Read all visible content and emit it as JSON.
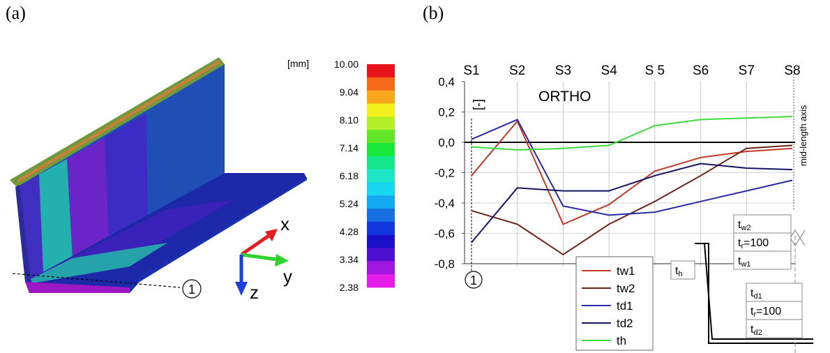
{
  "panel_a": {
    "label": "(a)",
    "unit": "[mm]",
    "legend_values": [
      "10.00",
      "9.04",
      "8.10",
      "7.14",
      "6.18",
      "5.24",
      "4.28",
      "3.34",
      "2.38"
    ],
    "legend_colors": [
      "#e8141c",
      "#f46a18",
      "#f8a81a",
      "#f4f01e",
      "#b4ee28",
      "#64e628",
      "#1ce83a",
      "#14e88a",
      "#20e6c8",
      "#16d6f0",
      "#14a8f0",
      "#1870e0",
      "#1438e0",
      "#1a10c8",
      "#5010d0",
      "#a018e0",
      "#e41ee6"
    ],
    "axes": {
      "x": "x",
      "y": "y",
      "z": "z"
    },
    "section_marker": "1"
  },
  "panel_b": {
    "label": "(b)",
    "y_unit": "[-]",
    "chart_label": "ORTHO",
    "mid_axis_label": "mid-length axis",
    "section_marker": "1",
    "box_top": {
      "rows": [
        "w2",
        "100",
        "w1"
      ]
    },
    "box_bottom": {
      "rows": [
        "d1",
        "100",
        "d2"
      ]
    },
    "th_label": "h"
  },
  "chart_data": {
    "type": "line",
    "categories": [
      "S1",
      "S2",
      "S3",
      "S4",
      "S 5",
      "S6",
      "S7",
      "S8"
    ],
    "ylim": [
      -0.8,
      0.4
    ],
    "yticks": [
      "0,4",
      "0,2",
      "0,0",
      "-0,2",
      "-0,4",
      "-0,6",
      "-0,8"
    ],
    "legend_placement": "bottom-center",
    "series": [
      {
        "name": "tw1",
        "color": "#c0392b",
        "values": [
          -0.22,
          0.14,
          -0.54,
          -0.41,
          -0.19,
          -0.1,
          -0.06,
          -0.04
        ]
      },
      {
        "name": "tw2",
        "color": "#6b2418",
        "values": [
          -0.45,
          -0.54,
          -0.74,
          -0.54,
          -0.39,
          -0.22,
          -0.04,
          -0.02
        ]
      },
      {
        "name": "td1",
        "color": "#2a2aa8",
        "values": [
          0.02,
          0.15,
          -0.42,
          -0.48,
          -0.46,
          -0.39,
          -0.32,
          -0.25
        ]
      },
      {
        "name": "td2",
        "color": "#141460",
        "values": [
          -0.66,
          -0.3,
          -0.32,
          -0.32,
          -0.22,
          -0.14,
          -0.17,
          -0.18
        ]
      },
      {
        "name": "th",
        "color": "#3ddc3d",
        "values": [
          -0.03,
          -0.05,
          -0.04,
          -0.02,
          0.11,
          0.15,
          0.16,
          0.17
        ]
      }
    ]
  }
}
